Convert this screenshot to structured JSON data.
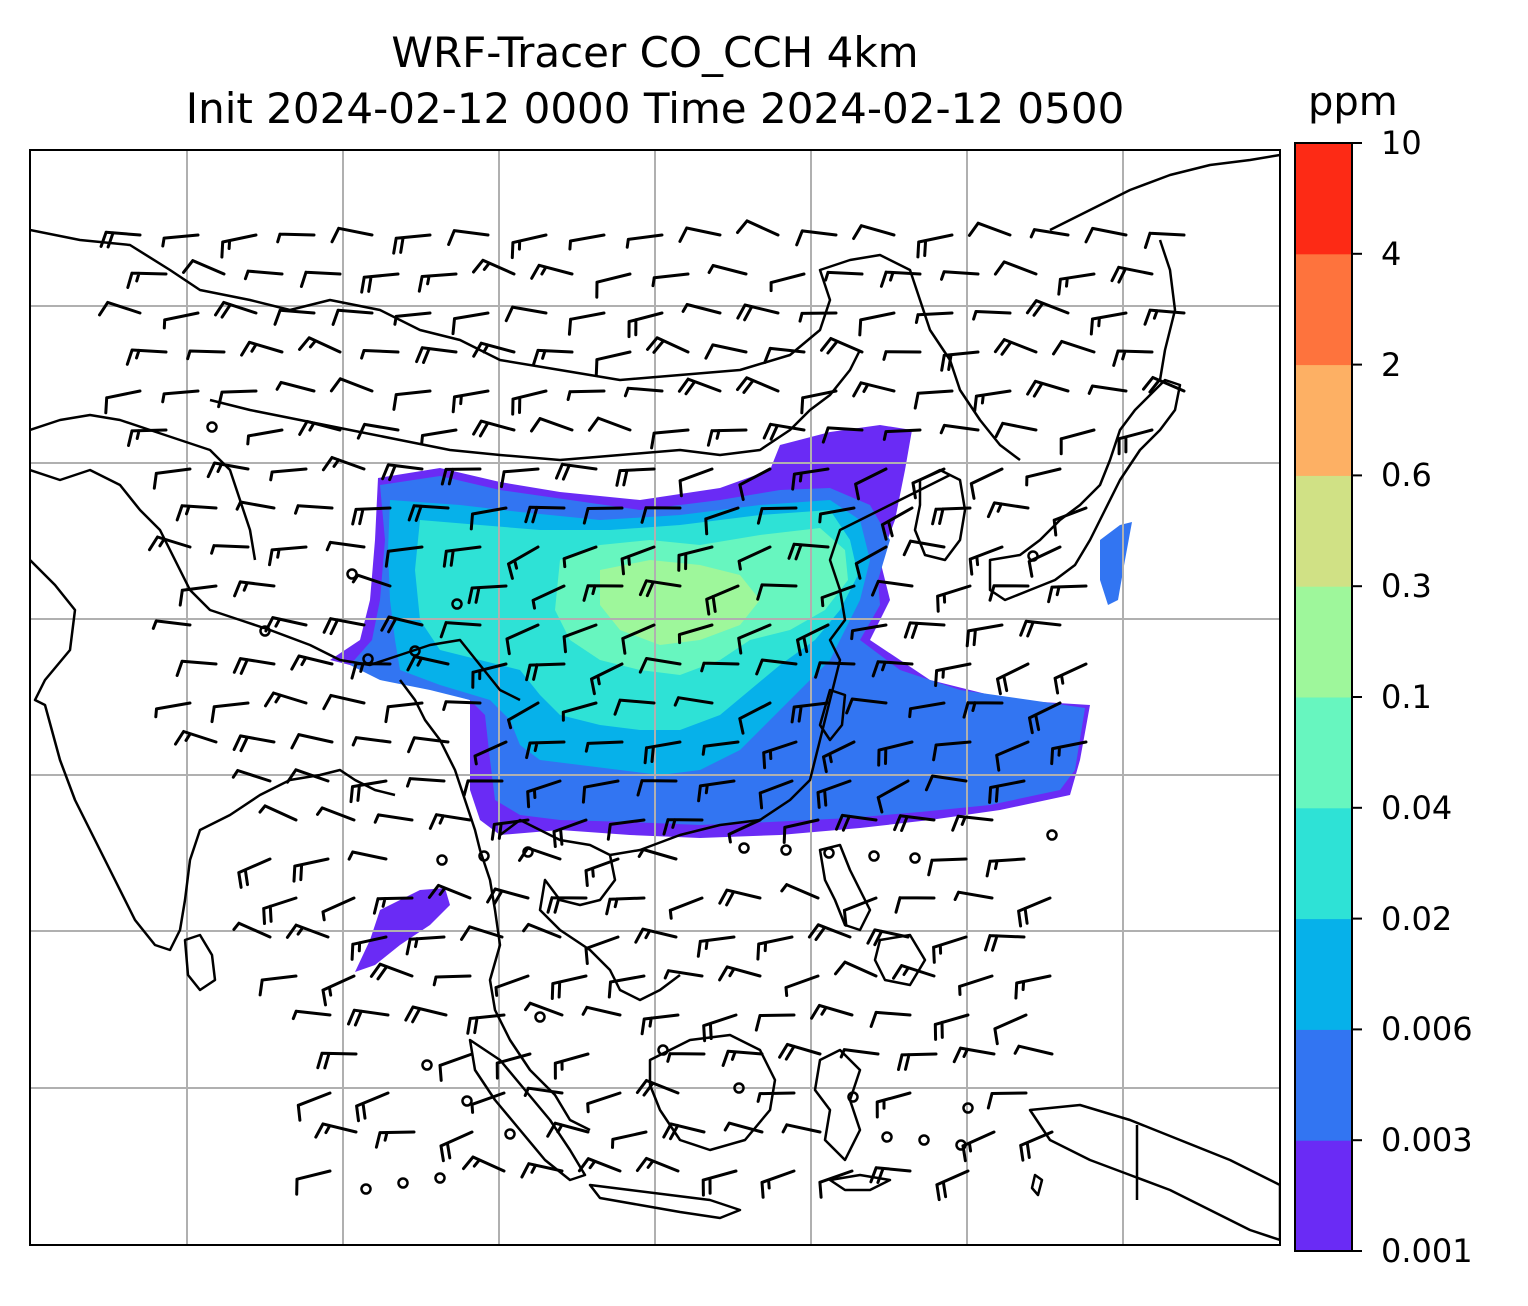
{
  "title": {
    "line1": "WRF-Tracer CO_CCH 4km",
    "line2": "Init 2024-02-12 0000 Time 2024-02-12 0500"
  },
  "colorbar": {
    "unit": "ppm",
    "levels": [
      "0.001",
      "0.003",
      "0.006",
      "0.02",
      "0.04",
      "0.1",
      "0.3",
      "0.6",
      "2",
      "4",
      "10"
    ],
    "colors": [
      "#6a2bf5",
      "#3275f2",
      "#06b1ea",
      "#2ee2d6",
      "#67f6bf",
      "#9ef79b",
      "#d0e185",
      "#fdb064",
      "#fe733d",
      "#fd2a15"
    ]
  },
  "map": {
    "gridlines": true,
    "coastline_color": "#000000",
    "gridline_color": "#b0b0b0",
    "wind_barbs": true,
    "plume_colors": [
      "#6a2bf5",
      "#3275f2",
      "#06b1ea",
      "#2ee2d6",
      "#67f6bf"
    ]
  }
}
